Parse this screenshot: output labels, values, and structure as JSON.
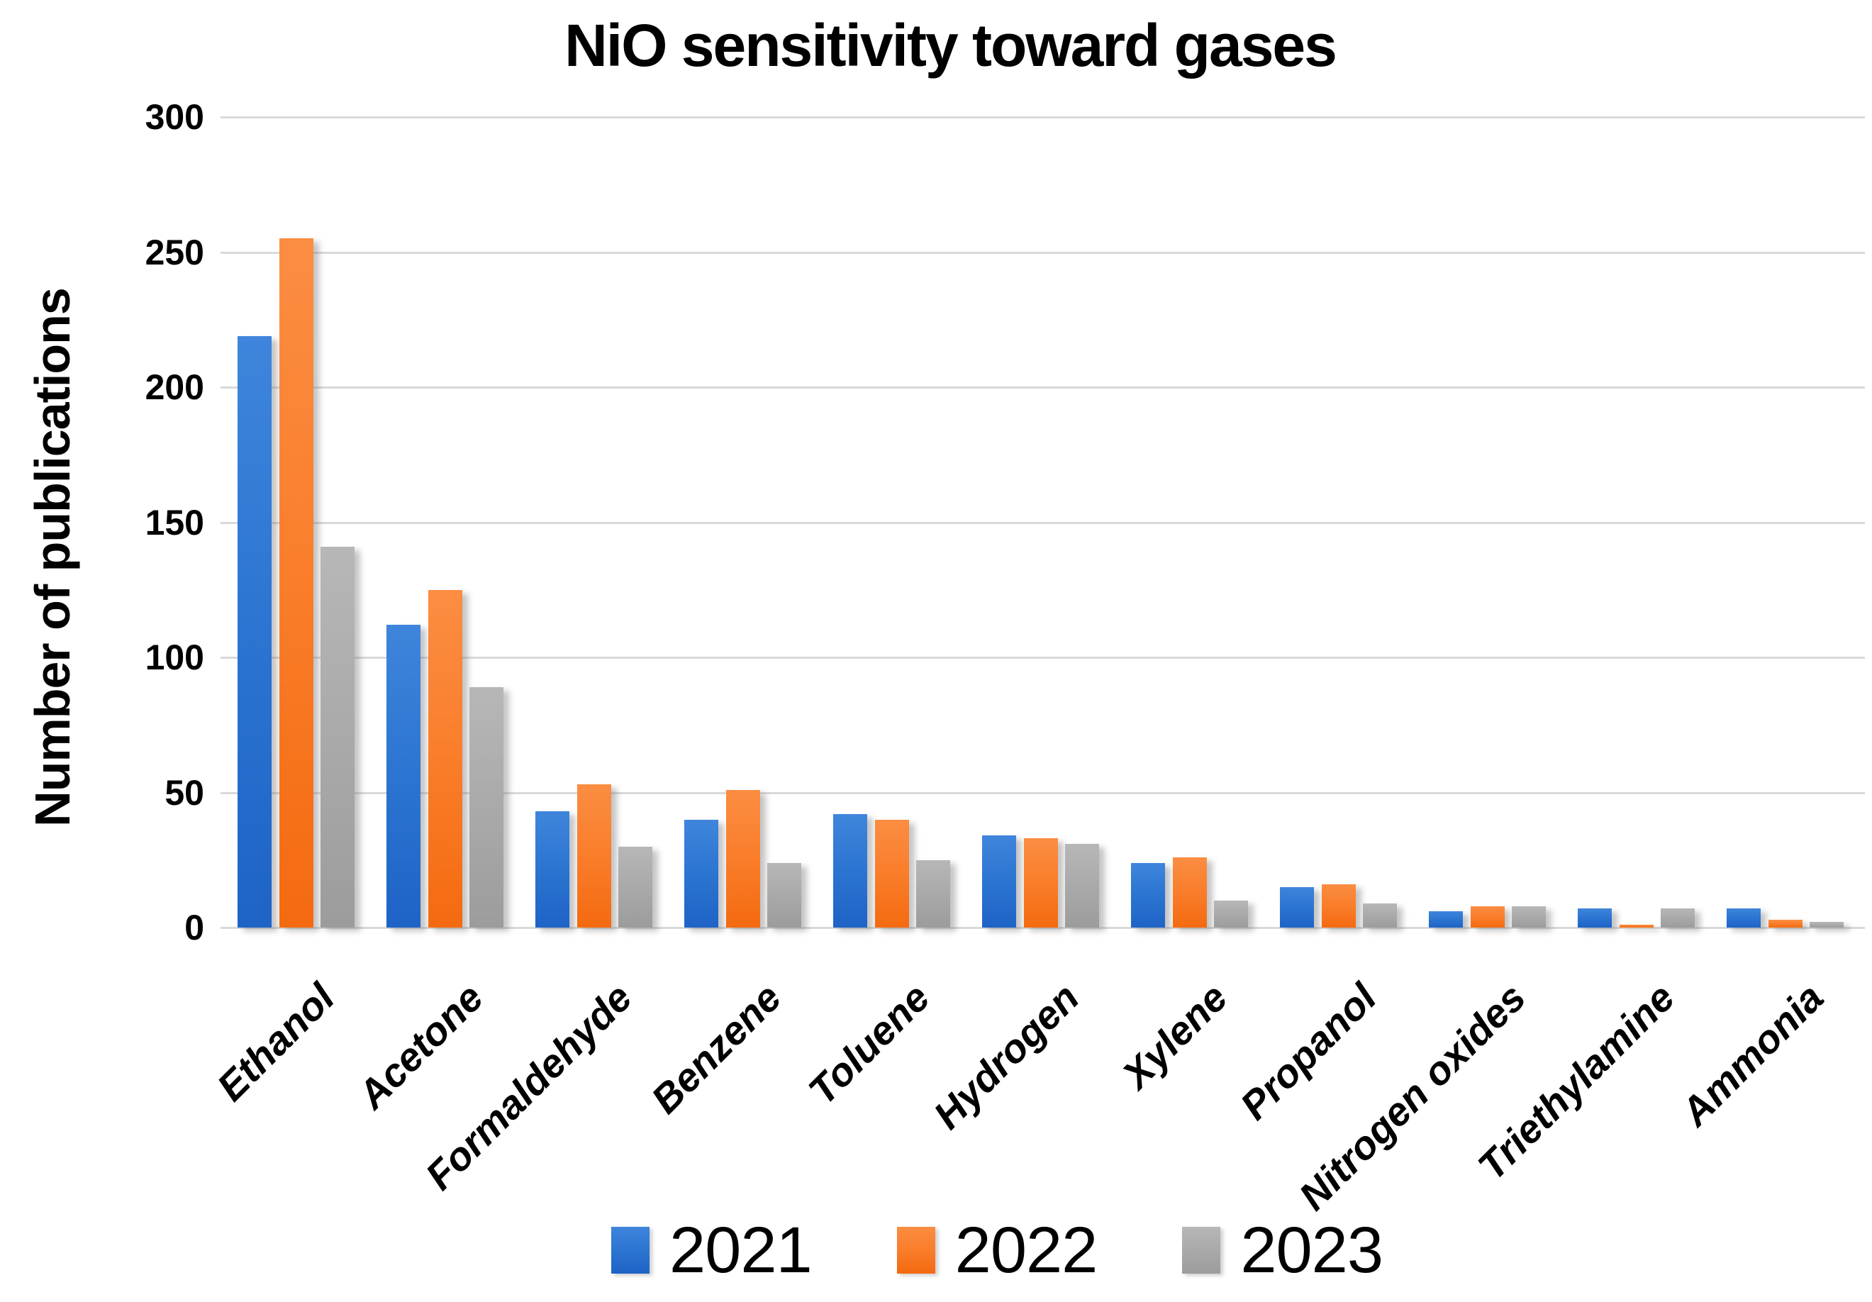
{
  "chart_data": {
    "type": "bar",
    "title": "NiO sensitivity toward gases",
    "xlabel": "",
    "ylabel": "Number of publications",
    "categories": [
      "Ethanol",
      "Acetone",
      "Formaldehyde",
      "Benzene",
      "Toluene",
      "Hydrogen",
      "Xylene",
      "Propanol",
      "Nitrogen oxides",
      "Triethylamine",
      "Ammonia"
    ],
    "series": [
      {
        "name": "2021",
        "color": "#2d76d2",
        "values": [
          219,
          112,
          43,
          40,
          42,
          34,
          24,
          15,
          6,
          7,
          7
        ]
      },
      {
        "name": "2022",
        "color": "#fa7f2d",
        "values": [
          255,
          125,
          53,
          51,
          40,
          33,
          26,
          16,
          8,
          1,
          3
        ]
      },
      {
        "name": "2023",
        "color": "#ababab",
        "values": [
          141,
          89,
          30,
          24,
          25,
          31,
          10,
          9,
          8,
          7,
          2
        ]
      }
    ],
    "ylim": [
      0,
      300
    ],
    "yticks": [
      0,
      50,
      100,
      150,
      200,
      250,
      300
    ],
    "grid": true,
    "gridline_color": "#d9d9d9",
    "legend_position": "bottom"
  }
}
